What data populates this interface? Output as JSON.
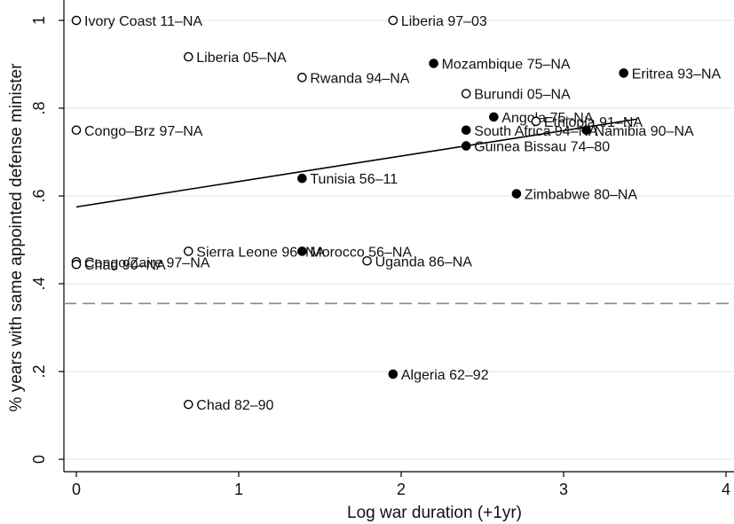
{
  "chart_data": {
    "type": "scatter",
    "xlabel": "Log war duration (+1yr)",
    "ylabel": "% years with same appointed defense minister",
    "xlim": [
      0,
      4
    ],
    "ylim": [
      0,
      1
    ],
    "x_ticks": [
      0,
      1,
      2,
      3,
      4
    ],
    "x_tick_labels": [
      "0",
      "1",
      "2",
      "3",
      "4"
    ],
    "y_ticks": [
      0,
      0.2,
      0.4,
      0.6,
      0.8,
      1
    ],
    "y_tick_labels": [
      "0",
      ".2",
      ".4",
      ".6",
      ".8",
      "1"
    ],
    "grid": true,
    "legend": "none",
    "fit_line": {
      "x": [
        0,
        3.45
      ],
      "y": [
        0.575,
        0.775
      ]
    },
    "reference_line": {
      "y": 0.355,
      "style": "dashed"
    },
    "points": [
      {
        "label": "Ivory Coast 11–NA",
        "x": 0.0,
        "y": 1.0,
        "filled": false
      },
      {
        "label": "Liberia 97–03",
        "x": 1.95,
        "y": 1.0,
        "filled": false
      },
      {
        "label": "Liberia 05–NA",
        "x": 0.69,
        "y": 0.917,
        "filled": false
      },
      {
        "label": "Mozambique 75–NA",
        "x": 2.2,
        "y": 0.902,
        "filled": true
      },
      {
        "label": "Eritrea 93–NA",
        "x": 3.37,
        "y": 0.88,
        "filled": true
      },
      {
        "label": "Rwanda 94–NA",
        "x": 1.39,
        "y": 0.87,
        "filled": false
      },
      {
        "label": "Burundi 05–NA",
        "x": 2.4,
        "y": 0.833,
        "filled": false
      },
      {
        "label": "Angola 75–NA",
        "x": 2.57,
        "y": 0.78,
        "filled": true
      },
      {
        "label": "Ethiopia 91–NA",
        "x": 2.83,
        "y": 0.77,
        "filled": false
      },
      {
        "label": "Congo–Brz 97–NA",
        "x": 0.0,
        "y": 0.75,
        "filled": false
      },
      {
        "label": "South Africa 94–NA",
        "x": 2.4,
        "y": 0.75,
        "filled": true
      },
      {
        "label": "Namibia 90–NA",
        "x": 3.14,
        "y": 0.75,
        "filled": true
      },
      {
        "label": "Guinea Bissau 74–80",
        "x": 2.4,
        "y": 0.714,
        "filled": true
      },
      {
        "label": "Tunisia 56–11",
        "x": 1.39,
        "y": 0.64,
        "filled": true
      },
      {
        "label": "Zimbabwe 80–NA",
        "x": 2.71,
        "y": 0.605,
        "filled": true
      },
      {
        "label": "Sierra Leone 96–NA",
        "x": 0.69,
        "y": 0.474,
        "filled": false
      },
      {
        "label": "Morocco 56–NA",
        "x": 1.39,
        "y": 0.474,
        "filled": true
      },
      {
        "label": "Uganda 86–NA",
        "x": 1.79,
        "y": 0.452,
        "filled": false
      },
      {
        "label": "Congo/Zaire 97–NA",
        "x": 0.0,
        "y": 0.45,
        "filled": false
      },
      {
        "label": "Chad 90–NA",
        "x": 0.0,
        "y": 0.444,
        "filled": false
      },
      {
        "label": "Algeria 62–92",
        "x": 1.95,
        "y": 0.194,
        "filled": true
      },
      {
        "label": "Chad 82–90",
        "x": 0.69,
        "y": 0.125,
        "filled": false
      }
    ]
  }
}
